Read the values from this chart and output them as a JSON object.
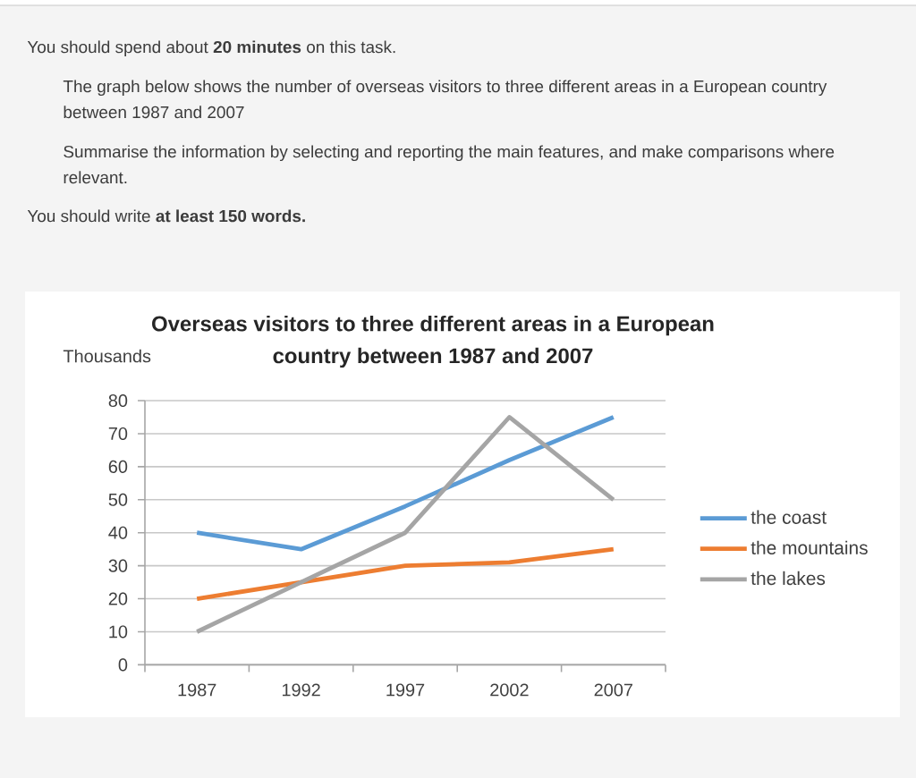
{
  "chart_data": {
    "type": "line",
    "title": "Overseas visitors to three different areas in a European country between 1987 and 2007",
    "ylabel": "Thousands",
    "annotations": [
      "You should spend about **20 minutes** on this task.",
      "The graph below shows the number of overseas visitors to three different areas in a European country between 1987 and 2007",
      "Summarise the information by selecting and reporting the main features, and make comparisons where relevant.",
      "You should write **at least 150 words.**"
    ],
    "categories": [
      "1987",
      "1992",
      "1997",
      "2002",
      "2007"
    ],
    "series": [
      {
        "name": "the coast",
        "color": "#5b9bd5",
        "values": [
          40,
          35,
          48,
          62,
          75
        ]
      },
      {
        "name": "the mountains",
        "color": "#ed7d31",
        "values": [
          20,
          25,
          30,
          31,
          35
        ]
      },
      {
        "name": "the lakes",
        "color": "#a5a5a5",
        "values": [
          10,
          25,
          40,
          75,
          50
        ]
      }
    ],
    "ylim": [
      0,
      80
    ],
    "yticks": [
      0,
      10,
      20,
      30,
      40,
      50,
      60,
      70,
      80
    ],
    "grid": "y",
    "legend": "right"
  }
}
